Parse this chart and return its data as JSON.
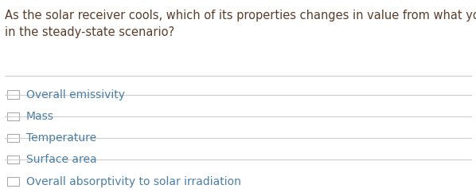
{
  "question": "As the solar receiver cools, which of its properties changes in value from what you initially calculated\nin the steady-state scenario?",
  "question_color": "#5a3e2b",
  "options": [
    "Overall emissivity",
    "Mass",
    "Temperature",
    "Surface area",
    "Overall absorptivity to solar irradiation"
  ],
  "option_color": "#4a7fa5",
  "background_color": "#ffffff",
  "line_color": "#cccccc",
  "checkbox_color": "#aaaaaa",
  "question_fontsize": 10.5,
  "option_fontsize": 10.0,
  "fig_width": 5.98,
  "fig_height": 2.37
}
